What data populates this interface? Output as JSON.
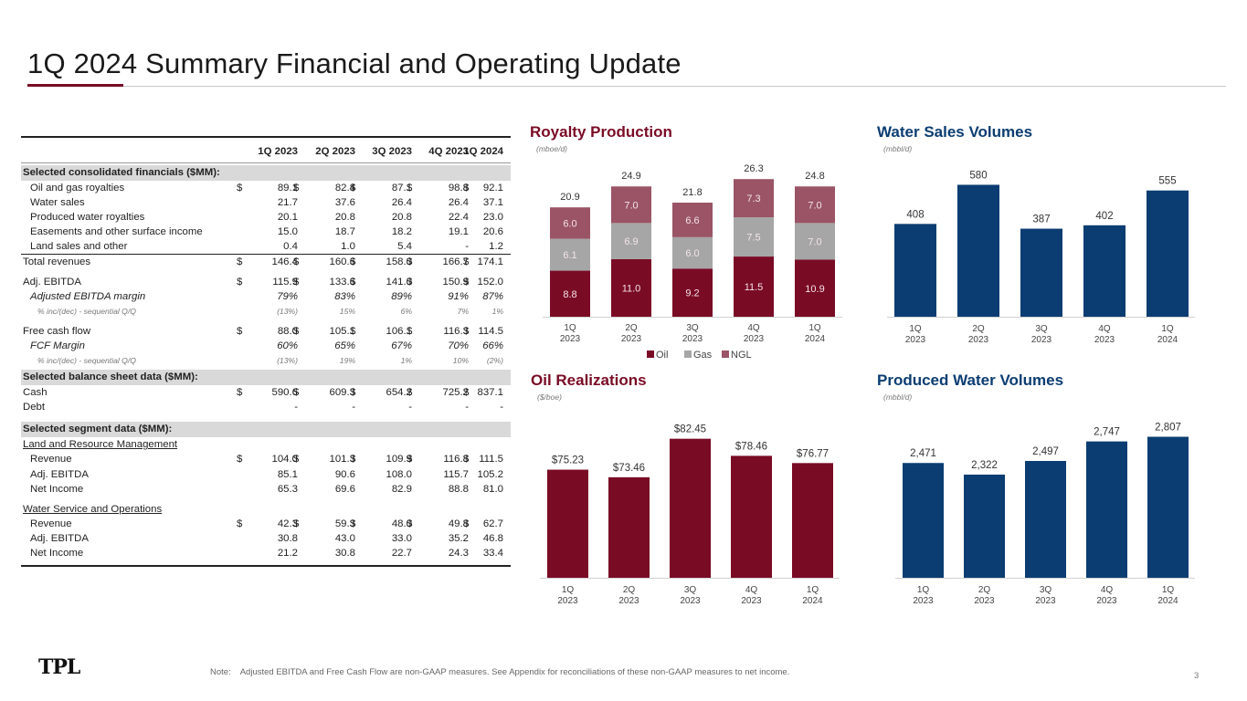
{
  "title": "1Q 2024 Summary Financial and Operating Update",
  "colors": {
    "maroon": "#7a0b25",
    "gas_gray": "#a6a6a6",
    "ngl_rose": "#9a5466",
    "navy": "#0b3d72",
    "section_bg": "#d9d9d9"
  },
  "table": {
    "columns": [
      "1Q 2023",
      "2Q 2023",
      "3Q 2023",
      "4Q 2023",
      "1Q 2024"
    ],
    "sections": [
      {
        "heading": "Selected consolidated financials ($MM):",
        "rows": [
          {
            "label": "Oil and gas royalties",
            "style": "indent",
            "currency": true,
            "values": [
              "89.1",
              "82.4",
              "87.1",
              "98.8",
              "92.1"
            ]
          },
          {
            "label": "Water sales",
            "style": "indent",
            "currency": false,
            "values": [
              "21.7",
              "37.6",
              "26.4",
              "26.4",
              "37.1"
            ]
          },
          {
            "label": "Produced water royalties",
            "style": "indent",
            "currency": false,
            "values": [
              "20.1",
              "20.8",
              "20.8",
              "22.4",
              "23.0"
            ]
          },
          {
            "label": "Easements and other surface income",
            "style": "indent",
            "currency": false,
            "values": [
              "15.0",
              "18.7",
              "18.2",
              "19.1",
              "20.6"
            ]
          },
          {
            "label": "Land sales and other",
            "style": "indent",
            "currency": false,
            "values": [
              "0.4",
              "1.0",
              "5.4",
              "-",
              "1.2"
            ]
          },
          {
            "label": "Total revenues",
            "style": "total",
            "currency": true,
            "values": [
              "146.4",
              "160.6",
              "158.0",
              "166.7",
              "174.1"
            ]
          },
          {
            "label": "",
            "style": "gap"
          },
          {
            "label": "Adj. EBITDA",
            "style": "plain",
            "currency": true,
            "values": [
              "115.9",
              "133.6",
              "141.0",
              "150.9",
              "152.0"
            ]
          },
          {
            "label": "Adjusted EBITDA margin",
            "style": "ital",
            "currency": false,
            "values": [
              "79%",
              "83%",
              "89%",
              "91%",
              "87%"
            ]
          },
          {
            "label": "% inc/(dec) - sequential Q/Q",
            "style": "small",
            "currency": false,
            "values": [
              "(13%)",
              "15%",
              "6%",
              "7%",
              "1%"
            ]
          },
          {
            "label": "",
            "style": "gap"
          },
          {
            "label": "Free cash flow",
            "style": "plain",
            "currency": true,
            "values": [
              "88.0",
              "105.1",
              "106.1",
              "116.3",
              "114.5"
            ]
          },
          {
            "label": "FCF Margin",
            "style": "ital",
            "currency": false,
            "values": [
              "60%",
              "65%",
              "67%",
              "70%",
              "66%"
            ]
          },
          {
            "label": "% inc/(dec) - sequential Q/Q",
            "style": "small",
            "currency": false,
            "values": [
              "(13%)",
              "19%",
              "1%",
              "10%",
              "(2%)"
            ]
          }
        ]
      },
      {
        "heading": "Selected balance sheet data ($MM):",
        "rows": [
          {
            "label": "Cash",
            "style": "plain",
            "currency": true,
            "values": [
              "590.6",
              "609.3",
              "654.2",
              "725.2",
              "837.1"
            ]
          },
          {
            "label": "Debt",
            "style": "plain",
            "currency": false,
            "values": [
              "-",
              "-",
              "-",
              "-",
              "-"
            ]
          },
          {
            "label": "",
            "style": "gap"
          }
        ]
      },
      {
        "heading": "Selected segment data ($MM):",
        "rows": [
          {
            "label": "Land and Resource Management",
            "style": "underline",
            "currency": false,
            "values": [
              "",
              "",
              "",
              "",
              ""
            ]
          },
          {
            "label": "Revenue",
            "style": "indent",
            "currency": true,
            "values": [
              "104.0",
              "101.3",
              "109.9",
              "116.8",
              "111.5"
            ]
          },
          {
            "label": "Adj. EBITDA",
            "style": "indent",
            "currency": false,
            "values": [
              "85.1",
              "90.6",
              "108.0",
              "115.7",
              "105.2"
            ]
          },
          {
            "label": "Net Income",
            "style": "indent",
            "currency": false,
            "values": [
              "65.3",
              "69.6",
              "82.9",
              "88.8",
              "81.0"
            ]
          },
          {
            "label": "",
            "style": "gap"
          },
          {
            "label": "Water Service and Operations",
            "style": "underline",
            "currency": false,
            "values": [
              "",
              "",
              "",
              "",
              ""
            ]
          },
          {
            "label": "Revenue",
            "style": "indent",
            "currency": true,
            "values": [
              "42.3",
              "59.3",
              "48.0",
              "49.8",
              "62.7"
            ]
          },
          {
            "label": "Adj. EBITDA",
            "style": "indent",
            "currency": false,
            "values": [
              "30.8",
              "43.0",
              "33.0",
              "35.2",
              "46.8"
            ]
          },
          {
            "label": "Net Income",
            "style": "indent",
            "currency": false,
            "values": [
              "21.2",
              "30.8",
              "22.7",
              "24.3",
              "33.4"
            ]
          }
        ]
      }
    ]
  },
  "chart_data": [
    {
      "id": "royalty",
      "type": "bar",
      "stacked": true,
      "title": "Royalty Production",
      "unit": "(mboe/d)",
      "categories": [
        "1Q\n2023",
        "2Q\n2023",
        "3Q\n2023",
        "4Q\n2023",
        "1Q\n2024"
      ],
      "series": [
        {
          "name": "Oil",
          "color": "#7a0b25",
          "values": [
            8.8,
            11.0,
            9.2,
            11.5,
            10.9
          ]
        },
        {
          "name": "Gas",
          "color": "#a6a6a6",
          "values": [
            6.1,
            6.9,
            6.0,
            7.5,
            7.0
          ]
        },
        {
          "name": "NGL",
          "color": "#9a5466",
          "values": [
            6.0,
            7.0,
            6.6,
            7.3,
            7.0
          ]
        }
      ],
      "totals": [
        "20.9",
        "24.9",
        "21.8",
        "26.3",
        "24.8"
      ],
      "legend": "bottom",
      "ylim": [
        0,
        30
      ]
    },
    {
      "id": "water-sales",
      "type": "bar",
      "title": "Water Sales Volumes",
      "unit": "(mbbl/d)",
      "categories": [
        "1Q\n2023",
        "2Q\n2023",
        "3Q\n2023",
        "4Q\n2023",
        "1Q\n2024"
      ],
      "values": [
        408,
        580,
        387,
        402,
        555
      ],
      "labels": [
        "408",
        "580",
        "387",
        "402",
        "555"
      ],
      "color": "#0b3d72",
      "ylim": [
        0,
        650
      ]
    },
    {
      "id": "oil-realizations",
      "type": "bar",
      "title": "Oil Realizations",
      "unit": "($/boe)",
      "categories": [
        "1Q\n2023",
        "2Q\n2023",
        "3Q\n2023",
        "4Q\n2023",
        "1Q\n2024"
      ],
      "values": [
        75.23,
        73.46,
        82.45,
        78.46,
        76.77
      ],
      "labels": [
        "$75.23",
        "$73.46",
        "$82.45",
        "$78.46",
        "$76.77"
      ],
      "color": "#7a0b25",
      "ylim": [
        50,
        86
      ]
    },
    {
      "id": "produced-water",
      "type": "bar",
      "title": "Produced Water Volumes",
      "unit": "(mbbl/d)",
      "categories": [
        "1Q\n2023",
        "2Q\n2023",
        "3Q\n2023",
        "4Q\n2023",
        "1Q\n2024"
      ],
      "values": [
        2471,
        2322,
        2497,
        2747,
        2807
      ],
      "labels": [
        "2,471",
        "2,322",
        "2,497",
        "2,747",
        "2,807"
      ],
      "color": "#0b3d72",
      "ylim": [
        1000,
        3000
      ]
    }
  ],
  "footer": {
    "logo": "TPL",
    "note_label": "Note:",
    "note": "Adjusted EBITDA and Free Cash Flow are non-GAAP measures.  See Appendix for reconciliations of these non-GAAP measures to net income.",
    "page": "3"
  }
}
